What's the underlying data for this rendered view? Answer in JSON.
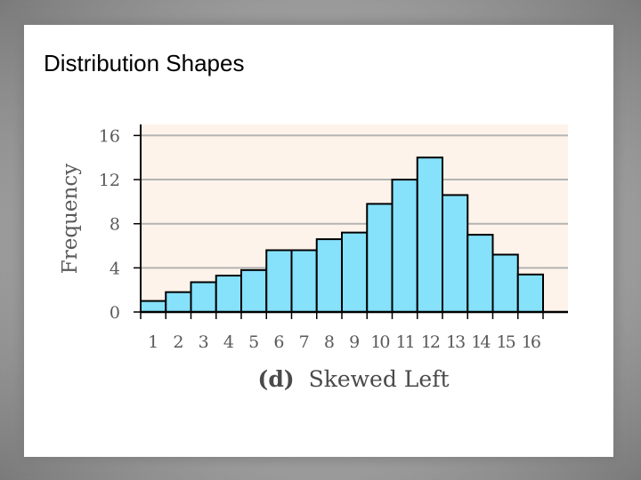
{
  "slide": {
    "title": "Distribution Shapes"
  },
  "chart_data": {
    "type": "bar",
    "categories": [
      "1",
      "2",
      "3",
      "4",
      "5",
      "6",
      "7",
      "8",
      "9",
      "10",
      "11",
      "12",
      "13",
      "14",
      "15",
      "16"
    ],
    "values": [
      1,
      1.8,
      2.7,
      3.3,
      3.8,
      5.6,
      5.6,
      6.6,
      7.2,
      9.8,
      12,
      14,
      10.6,
      7,
      5.2,
      3.4
    ],
    "title": "",
    "xlabel_bold": "(d)",
    "xlabel": "Skewed Left",
    "ylabel": "Frequency",
    "yticks": [
      "0",
      "4",
      "8",
      "12",
      "16"
    ],
    "ylim": [
      0,
      17
    ],
    "grid": true,
    "colors": {
      "bar_fill": "#86e1fb",
      "bar_stroke": "#000000",
      "plot_background": "#fdf3ea",
      "gridline": "#b3b3b3"
    }
  }
}
